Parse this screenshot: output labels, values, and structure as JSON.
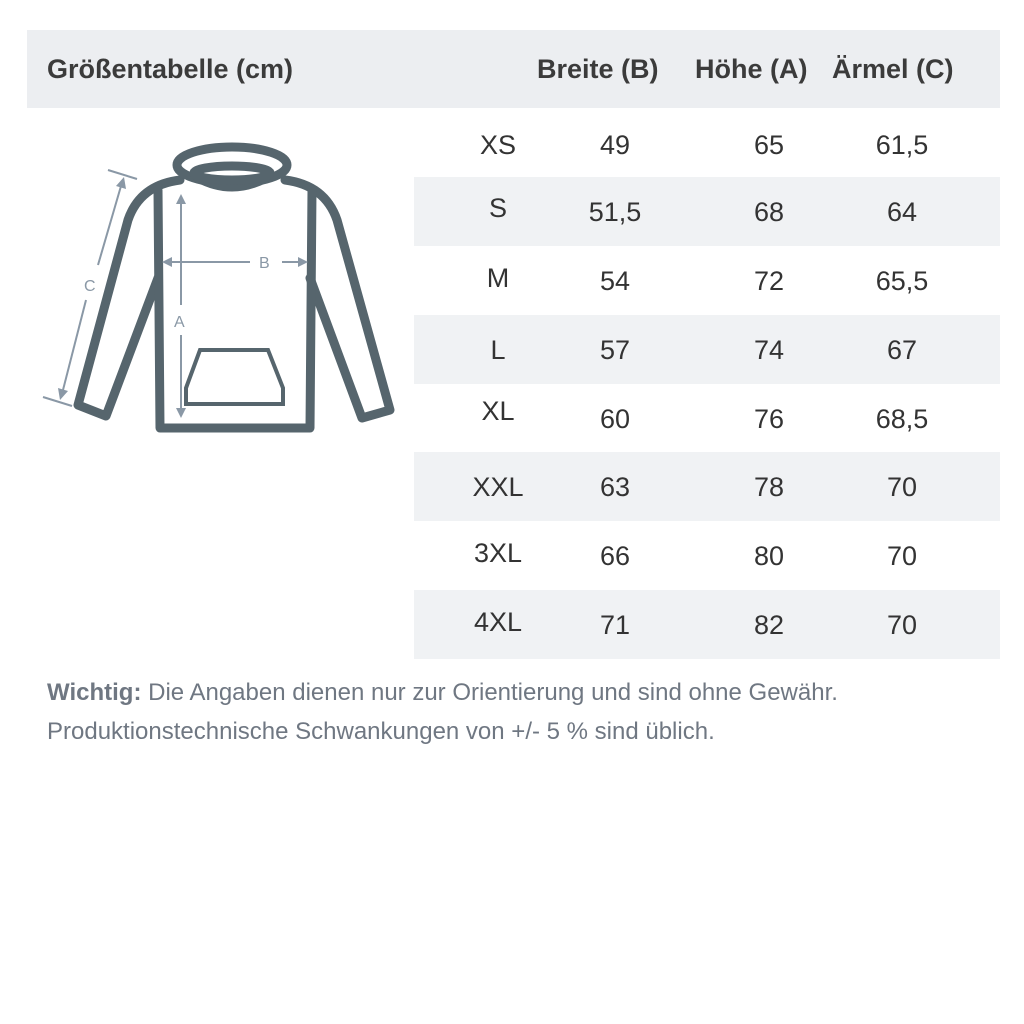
{
  "header": {
    "title": "Größentabelle (cm)",
    "col_breite": "Breite (B)",
    "col_hoehe": "Höhe (A)",
    "col_aermel": "Ärmel (C)"
  },
  "diagram": {
    "label_a": "A",
    "label_b": "B",
    "label_c": "C",
    "colors": {
      "outline": "#56656d",
      "arrows": "#8a98a6"
    }
  },
  "rows": [
    {
      "size": "XS",
      "breite": "49",
      "hoehe": "65",
      "aermel": "61,5"
    },
    {
      "size": "S",
      "breite": "51,5",
      "hoehe": "68",
      "aermel": "64"
    },
    {
      "size": "M",
      "breite": "54",
      "hoehe": "72",
      "aermel": "65,5"
    },
    {
      "size": "L",
      "breite": "57",
      "hoehe": "74",
      "aermel": "67"
    },
    {
      "size": "XL",
      "breite": "60",
      "hoehe": "76",
      "aermel": "68,5"
    },
    {
      "size": "XXL",
      "breite": "63",
      "hoehe": "78",
      "aermel": "70"
    },
    {
      "size": "3XL",
      "breite": "66",
      "hoehe": "80",
      "aermel": "70"
    },
    {
      "size": "4XL",
      "breite": "71",
      "hoehe": "82",
      "aermel": "70"
    }
  ],
  "note": {
    "label": "Wichtig:",
    "line1": "Die Angaben dienen nur zur Orientierung und sind ohne Gewähr.",
    "line2": "Produktionstechnische Schwankungen von +/- 5 % sind üblich."
  }
}
